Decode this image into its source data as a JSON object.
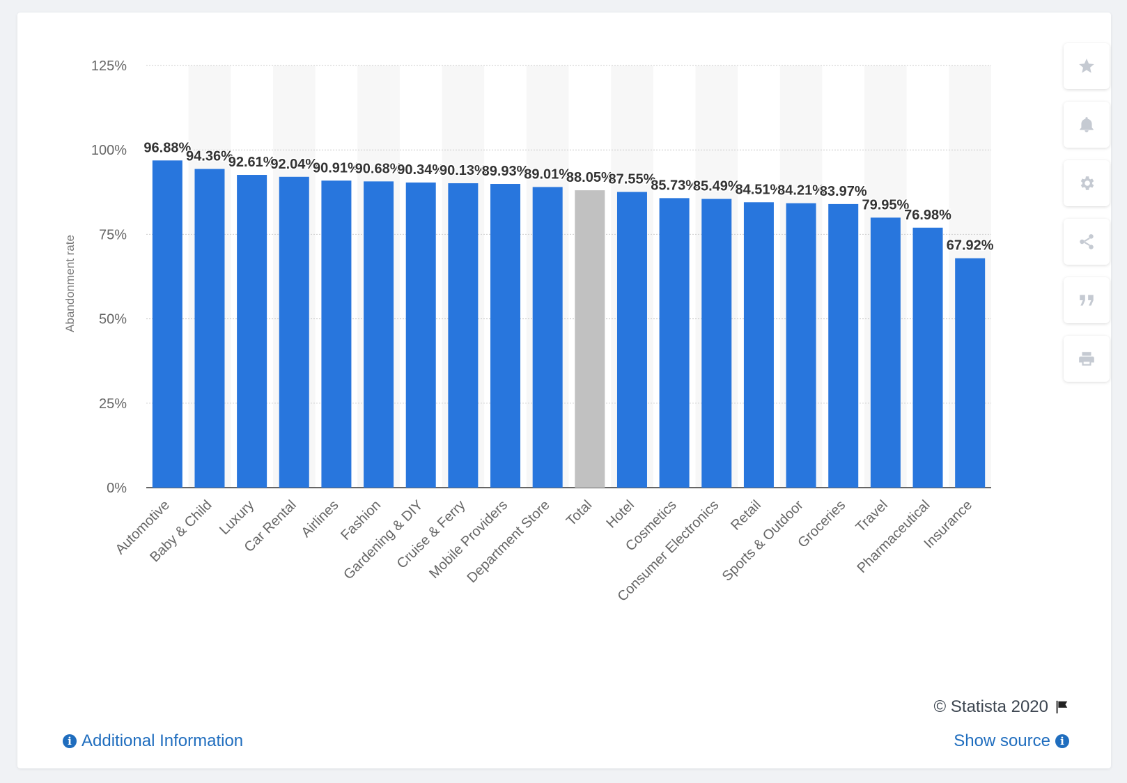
{
  "chart_data": {
    "type": "bar",
    "title": "",
    "xlabel": "",
    "ylabel": "Abandonment rate",
    "ylim": [
      0,
      125
    ],
    "yticks": [
      "0%",
      "25%",
      "50%",
      "75%",
      "100%",
      "125%"
    ],
    "ytick_values": [
      0,
      25,
      50,
      75,
      100,
      125
    ],
    "grid": true,
    "categories": [
      "Automotive",
      "Baby & Child",
      "Luxury",
      "Car Rental",
      "Airlines",
      "Fashion",
      "Gardening & DIY",
      "Cruise & Ferry",
      "Mobile Providers",
      "Department Store",
      "Total",
      "Hotel",
      "Cosmetics",
      "Consumer Electronics",
      "Retail",
      "Sports & Outdoor",
      "Groceries",
      "Travel",
      "Pharmaceutical",
      "Insurance"
    ],
    "values": [
      96.88,
      94.36,
      92.61,
      92.04,
      90.91,
      90.68,
      90.34,
      90.13,
      89.93,
      89.01,
      88.05,
      87.55,
      85.73,
      85.49,
      84.51,
      84.21,
      83.97,
      79.95,
      76.98,
      67.92
    ],
    "data_labels": [
      "96.88%",
      "94.36%",
      "92.61%",
      "92.04%",
      "90.91%",
      "90.68%",
      "90.34%",
      "90.13%",
      "89.93%",
      "89.01%",
      "88.05%",
      "87.55%",
      "85.73%",
      "85.49%",
      "84.51%",
      "84.21%",
      "83.97%",
      "79.95%",
      "76.98%",
      "67.92%"
    ],
    "highlight_category": "Total"
  },
  "colors": {
    "bar": "#2876dd",
    "highlight_bar": "#c1c1c1",
    "axis_text": "#666666",
    "data_label": "#333333",
    "band": "#f7f7f7",
    "grid": "#cccccc"
  },
  "toolbar": [
    {
      "icon": "star-icon",
      "label": "favorite"
    },
    {
      "icon": "bell-icon",
      "label": "notifications"
    },
    {
      "icon": "gear-icon",
      "label": "settings"
    },
    {
      "icon": "share-icon",
      "label": "share"
    },
    {
      "icon": "quote-icon",
      "label": "cite"
    },
    {
      "icon": "print-icon",
      "label": "print"
    }
  ],
  "footer": {
    "copyright": "© Statista 2020",
    "additional_info": "Additional Information",
    "show_source": "Show source"
  }
}
